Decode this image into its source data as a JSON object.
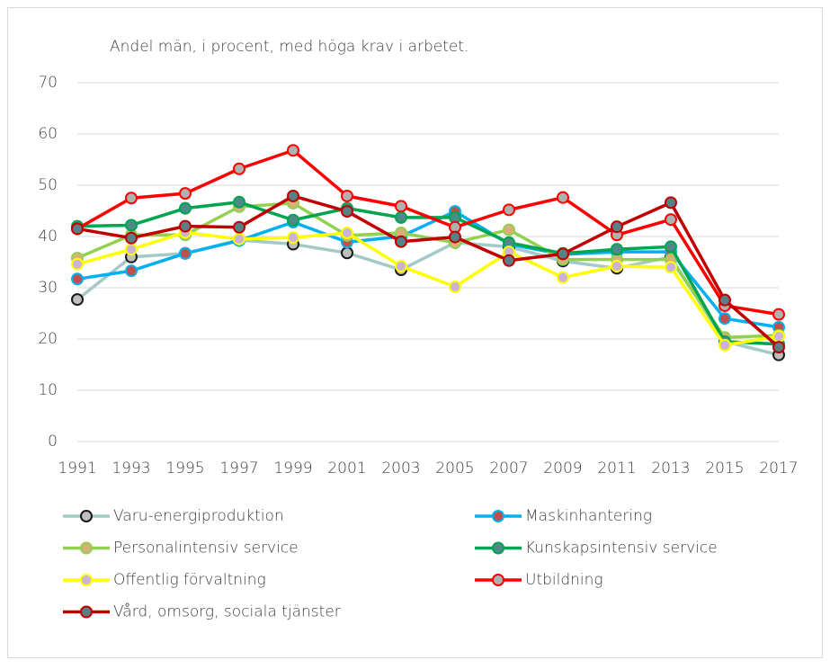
{
  "chart_data": {
    "type": "line",
    "title": "Andel män, i procent, med höga krav i arbetet.",
    "categories": [
      "1991",
      "1993",
      "1995",
      "1997",
      "1999",
      "2001",
      "2003",
      "2005",
      "2007",
      "2009",
      "2011",
      "2013",
      "2015",
      "2017"
    ],
    "ylim": [
      0,
      70
    ],
    "yticks": [
      0,
      10,
      20,
      30,
      40,
      50,
      60,
      70
    ],
    "grid": true,
    "series": [
      {
        "name": "Varu-energiproduktion",
        "color": "#a3c9c9",
        "marker_fill": "#bfbfbf",
        "marker_edge": "#1a1a1a",
        "values": [
          27.7,
          36,
          36.7,
          39.3,
          38.5,
          36.8,
          33.5,
          38.8,
          38,
          35.2,
          33.8,
          36,
          19.5,
          16.9
        ]
      },
      {
        "name": "Maskinhantering",
        "color": "#00b0f0",
        "marker_fill": "#c0504d",
        "marker_edge": "#00b0f0",
        "values": [
          31.7,
          33.3,
          36.7,
          39.2,
          42.8,
          38.9,
          40,
          44.9,
          38.5,
          36.5,
          37,
          37,
          24,
          22.3
        ]
      },
      {
        "name": "Personalintensiv service",
        "color": "#92d050",
        "marker_fill": "#d9b07a",
        "marker_edge": "#92d050",
        "values": [
          35.8,
          40.3,
          40.3,
          45.8,
          46.5,
          40.2,
          40.7,
          38.8,
          41.3,
          35.5,
          35.5,
          35.5,
          20.3,
          20.7
        ]
      },
      {
        "name": "Kunskapsintensiv service",
        "color": "#00a550",
        "marker_fill": "#4f8a8b",
        "marker_edge": "#00a550",
        "values": [
          42,
          42.2,
          45.5,
          46.7,
          43.2,
          45.5,
          43.7,
          43.7,
          38.8,
          36.7,
          37.5,
          38,
          19.5,
          19
        ]
      },
      {
        "name": "Offentlig förvaltning",
        "color": "#ffff00",
        "marker_fill": "#c9b3d6",
        "marker_edge": "#ffff00",
        "values": [
          34.6,
          37.5,
          40.8,
          39.5,
          39.8,
          40.7,
          34.2,
          30.2,
          37,
          32,
          34.2,
          34,
          18.8,
          20.5
        ]
      },
      {
        "name": "Utbildning",
        "color": "#ff0000",
        "marker_fill": "#b0b0b0",
        "marker_edge": "#ff0000",
        "values": [
          41.5,
          47.5,
          48.4,
          53.2,
          56.8,
          47.9,
          45.9,
          41.8,
          45.2,
          47.6,
          40.3,
          43.3,
          26.5,
          24.8
        ]
      },
      {
        "name": "Vård, omsorg, sociala tjänster",
        "color": "#c00000",
        "marker_fill": "#5a7f86",
        "marker_edge": "#c00000",
        "values": [
          41.5,
          39.7,
          42,
          41.8,
          47.9,
          44.9,
          39,
          39.9,
          35.3,
          36.6,
          41.9,
          46.6,
          27.6,
          18.4
        ]
      }
    ]
  }
}
